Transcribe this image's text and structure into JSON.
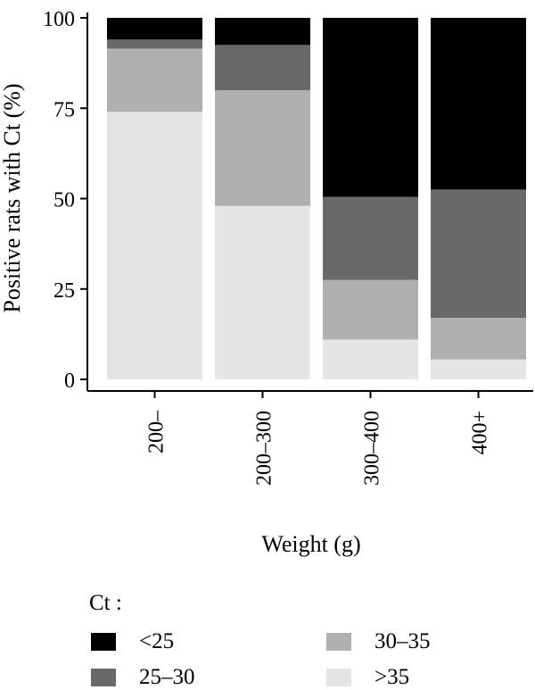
{
  "chart_data": {
    "type": "bar",
    "stacked": true,
    "xlabel": "Weight (g)",
    "ylabel": "Positive rats with Ct (%)",
    "ylim": [
      0,
      100
    ],
    "yticks": [
      0,
      25,
      50,
      75,
      100
    ],
    "categories": [
      "200–",
      "200–300",
      "300–400",
      "400+"
    ],
    "series": [
      {
        "name": ">35",
        "color": "#e5e5e5",
        "values": [
          74,
          48,
          11,
          5.5
        ]
      },
      {
        "name": "30–35",
        "color": "#b0b0b0",
        "values": [
          17.5,
          32,
          16.5,
          11.5
        ]
      },
      {
        "name": "25–30",
        "color": "#696969",
        "values": [
          2.5,
          12.5,
          23,
          35.5
        ]
      },
      {
        "name": "<25",
        "color": "#000000",
        "values": [
          6,
          7.5,
          49.5,
          47.5
        ]
      }
    ],
    "legend": {
      "title": "Ct :",
      "placement": "bottom",
      "order": [
        "<25",
        "25–30",
        "30–35",
        ">35"
      ]
    },
    "grid": false
  }
}
